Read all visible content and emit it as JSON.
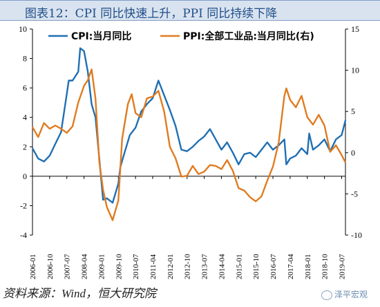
{
  "title": "图表12：CPI 同比快速上升，PPI 同比持续下降",
  "source": "资料来源：Wind，恒大研究院",
  "watermark": "泽平宏观",
  "chart_data": {
    "type": "line",
    "x_tick_labels": [
      "2006-01",
      "2006-10",
      "2007-07",
      "2008-04",
      "2009-01",
      "2009-10",
      "2010-07",
      "2011-04",
      "2012-01",
      "2012-10",
      "2013-07",
      "2014-04",
      "2015-01",
      "2015-10",
      "2016-07",
      "2017-04",
      "2018-01",
      "2018-10",
      "2019-07"
    ],
    "y_left": {
      "min": -4,
      "max": 10,
      "ticks": [
        -4,
        -2,
        0,
        2,
        4,
        6,
        8,
        10
      ]
    },
    "y_right": {
      "min": -10,
      "max": 15,
      "ticks": [
        -10,
        -5,
        0,
        5,
        10,
        15
      ]
    },
    "legend_position": "top",
    "series": [
      {
        "name": "CPI:当月同比",
        "color": "#1f6fb3",
        "axis": "left",
        "x": [
          "2006-01",
          "2006-04",
          "2006-07",
          "2006-10",
          "2007-01",
          "2007-04",
          "2007-07",
          "2007-08",
          "2007-10",
          "2008-01",
          "2008-02",
          "2008-04",
          "2008-06",
          "2008-08",
          "2008-10",
          "2008-12",
          "2009-02",
          "2009-04",
          "2009-07",
          "2009-10",
          "2009-11",
          "2010-01",
          "2010-04",
          "2010-07",
          "2010-10",
          "2011-01",
          "2011-04",
          "2011-07",
          "2011-10",
          "2012-01",
          "2012-04",
          "2012-07",
          "2012-10",
          "2013-01",
          "2013-04",
          "2013-07",
          "2013-10",
          "2014-01",
          "2014-04",
          "2014-07",
          "2014-10",
          "2015-01",
          "2015-04",
          "2015-07",
          "2015-10",
          "2016-01",
          "2016-04",
          "2016-07",
          "2016-10",
          "2017-01",
          "2017-02",
          "2017-04",
          "2017-07",
          "2017-10",
          "2018-01",
          "2018-02",
          "2018-04",
          "2018-07",
          "2018-10",
          "2019-01",
          "2019-04",
          "2019-07",
          "2019-09"
        ],
        "values": [
          1.9,
          1.2,
          1.0,
          1.4,
          2.2,
          3.0,
          5.6,
          6.5,
          6.5,
          7.1,
          8.7,
          8.5,
          7.1,
          4.9,
          4.0,
          1.2,
          -1.6,
          -1.5,
          -1.8,
          -0.5,
          0.6,
          1.5,
          2.8,
          3.3,
          4.4,
          4.9,
          5.3,
          6.5,
          5.5,
          4.5,
          3.4,
          1.8,
          1.7,
          2.0,
          2.4,
          2.7,
          3.2,
          2.5,
          1.8,
          2.3,
          1.6,
          0.8,
          1.5,
          1.6,
          1.3,
          1.8,
          2.3,
          1.8,
          2.1,
          2.5,
          0.8,
          1.2,
          1.4,
          1.9,
          1.5,
          2.9,
          1.8,
          2.1,
          2.5,
          1.7,
          2.5,
          2.8,
          3.8
        ]
      },
      {
        "name": "PPI:全部工业品:当月同比(右)",
        "color": "#e07b1f",
        "axis": "right",
        "x": [
          "2006-01",
          "2006-04",
          "2006-07",
          "2006-10",
          "2007-01",
          "2007-04",
          "2007-07",
          "2007-10",
          "2008-01",
          "2008-04",
          "2008-06",
          "2008-08",
          "2008-10",
          "2008-12",
          "2009-02",
          "2009-04",
          "2009-07",
          "2009-10",
          "2009-12",
          "2010-03",
          "2010-05",
          "2010-07",
          "2010-10",
          "2011-01",
          "2011-04",
          "2011-07",
          "2011-10",
          "2012-01",
          "2012-04",
          "2012-07",
          "2012-10",
          "2013-01",
          "2013-04",
          "2013-07",
          "2013-10",
          "2014-01",
          "2014-04",
          "2014-07",
          "2014-10",
          "2015-01",
          "2015-04",
          "2015-07",
          "2015-10",
          "2016-01",
          "2016-04",
          "2016-07",
          "2016-10",
          "2017-01",
          "2017-02",
          "2017-04",
          "2017-07",
          "2017-10",
          "2018-01",
          "2018-04",
          "2018-07",
          "2018-10",
          "2019-01",
          "2019-04",
          "2019-07",
          "2019-09"
        ],
        "values": [
          3.1,
          1.9,
          3.6,
          2.9,
          3.3,
          2.9,
          2.4,
          3.2,
          6.1,
          8.1,
          8.8,
          10.1,
          6.6,
          -1.1,
          -4.5,
          -6.6,
          -8.2,
          -5.8,
          1.7,
          5.9,
          7.1,
          4.8,
          4.3,
          6.6,
          6.8,
          7.5,
          5.0,
          0.7,
          -0.7,
          -2.9,
          -2.8,
          -1.6,
          -2.6,
          -2.3,
          -1.5,
          -1.6,
          -2.0,
          -0.9,
          -2.2,
          -4.3,
          -4.6,
          -5.4,
          -5.9,
          -5.3,
          -3.4,
          -1.7,
          1.2,
          6.9,
          7.8,
          6.4,
          5.5,
          6.9,
          4.3,
          3.4,
          4.6,
          3.3,
          0.1,
          0.9,
          -0.3,
          -1.2
        ]
      }
    ]
  }
}
